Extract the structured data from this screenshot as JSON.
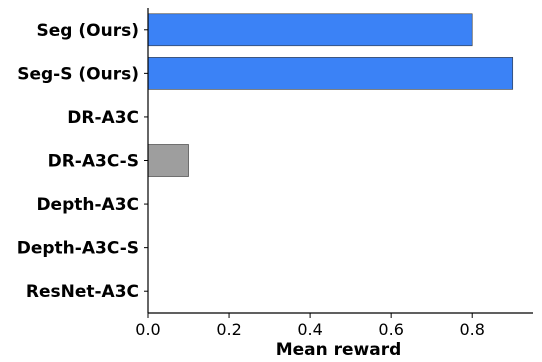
{
  "chart_data": {
    "type": "bar",
    "orientation": "horizontal",
    "categories": [
      "Seg (Ours)",
      "Seg-S (Ours)",
      "DR-A3C",
      "DR-A3C-S",
      "Depth-A3C",
      "Depth-A3C-S",
      "ResNet-A3C"
    ],
    "values": [
      0.8,
      0.9,
      0.0,
      0.1,
      0.0,
      0.0,
      0.0
    ],
    "bar_colors": [
      "#3b82f6",
      "#3b82f6",
      "#9e9e9e",
      "#9e9e9e",
      "#9e9e9e",
      "#9e9e9e",
      "#9e9e9e"
    ],
    "xlabel": "Mean reward",
    "xticks": [
      "0.0",
      "0.2",
      "0.4",
      "0.6",
      "0.8"
    ],
    "xtick_values": [
      0,
      0.2,
      0.4,
      0.6,
      0.8
    ],
    "xlim": [
      0,
      0.95
    ],
    "grid": false
  }
}
